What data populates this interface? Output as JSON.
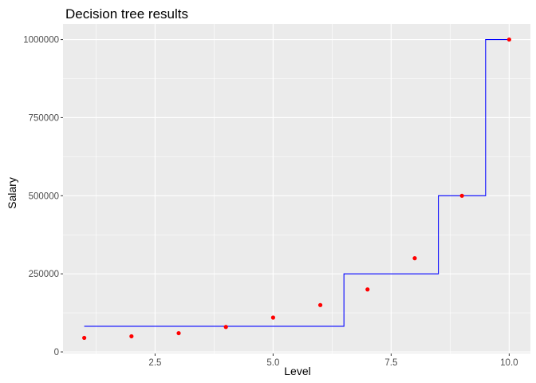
{
  "chart_data": {
    "type": "scatter",
    "title": "Decision tree results",
    "xlabel": "Level",
    "ylabel": "Salary",
    "xlim": [
      0.55,
      10.45
    ],
    "ylim": [
      -5000,
      1050000
    ],
    "x_ticks": [
      2.5,
      5.0,
      7.5,
      10.0
    ],
    "x_tick_labels": [
      "2.5",
      "5.0",
      "7.5",
      "10.0"
    ],
    "y_ticks": [
      0,
      250000,
      500000,
      750000,
      1000000
    ],
    "y_tick_labels": [
      "0",
      "250000",
      "500000",
      "750000",
      "1000000"
    ],
    "grid": true,
    "background_color": "#ebebeb",
    "grid_color": "#ffffff",
    "points": {
      "color": "#ff0000",
      "x": [
        1,
        2,
        3,
        4,
        5,
        6,
        7,
        8,
        9,
        10
      ],
      "y": [
        45000,
        50000,
        60000,
        80000,
        110000,
        150000,
        200000,
        300000,
        500000,
        1000000
      ]
    },
    "step_line": {
      "color": "#0000ff",
      "x": [
        1,
        6.5,
        6.5,
        8.5,
        8.5,
        9.5,
        9.5,
        10
      ],
      "y": [
        82000,
        82000,
        250000,
        250000,
        500000,
        500000,
        1000000,
        1000000
      ]
    }
  }
}
